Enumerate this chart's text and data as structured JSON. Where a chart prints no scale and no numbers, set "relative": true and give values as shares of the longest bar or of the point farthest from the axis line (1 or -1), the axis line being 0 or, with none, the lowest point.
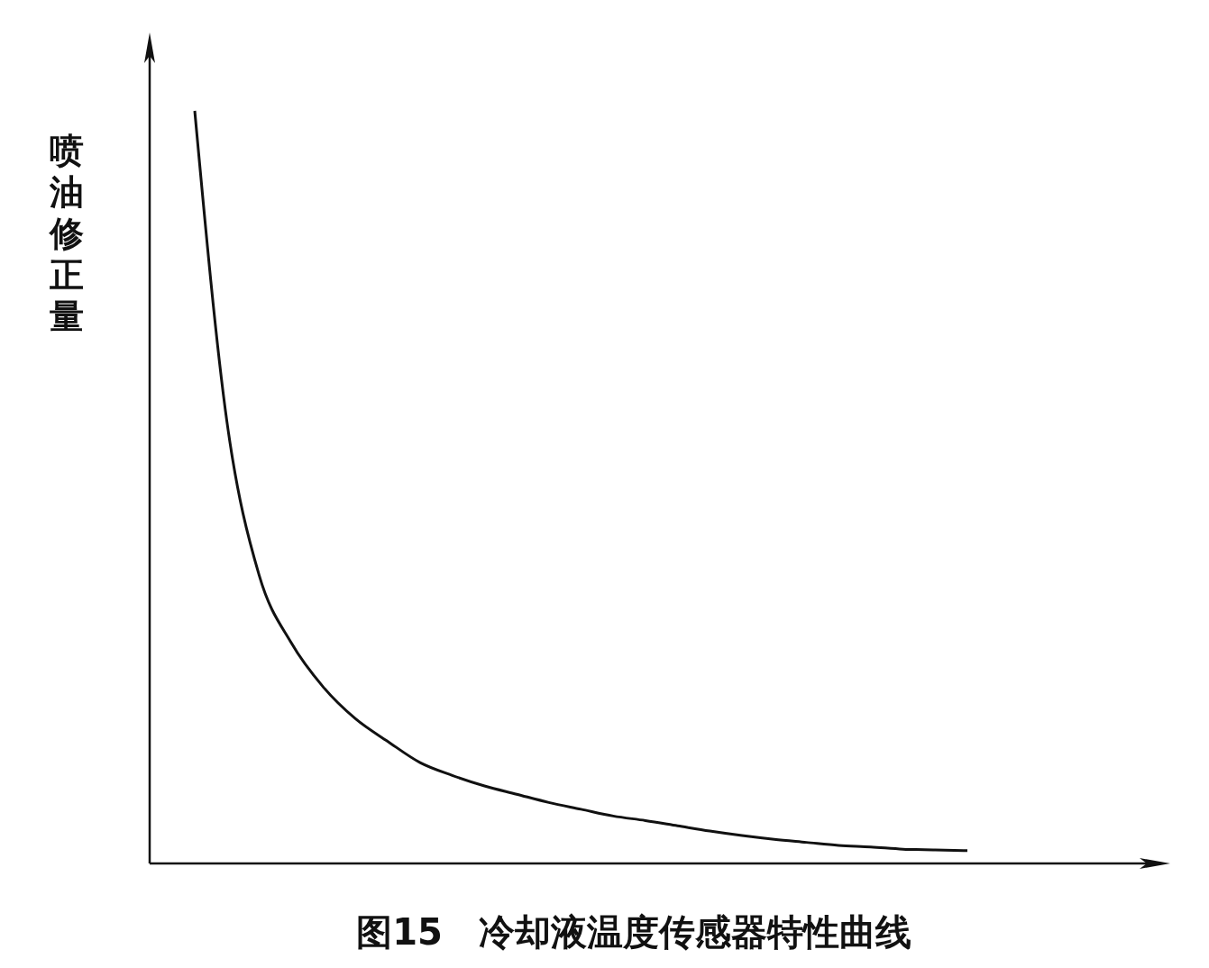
{
  "chart_data": {
    "type": "line",
    "title": "图15　冷却液温度传感器特性曲线",
    "ylabel": "喷油修正量",
    "relative": true,
    "color": "#111111",
    "line_style": "solid",
    "marker": "none",
    "categories": [
      null,
      null,
      null,
      null,
      null,
      null,
      null,
      null,
      null,
      null,
      null,
      null,
      null,
      null,
      null,
      null,
      null,
      null,
      null,
      null,
      null,
      null,
      null,
      null,
      null
    ],
    "values": [
      1,
      0.587,
      0.383,
      0.293,
      0.234,
      0.192,
      0.162,
      0.134,
      0.117,
      0.103,
      0.092,
      0.081,
      0.072,
      0.063,
      0.057,
      0.05,
      0.043,
      0.037,
      0.032,
      0.028,
      0.024,
      0.022,
      0.019,
      0.018,
      0.017
    ]
  }
}
